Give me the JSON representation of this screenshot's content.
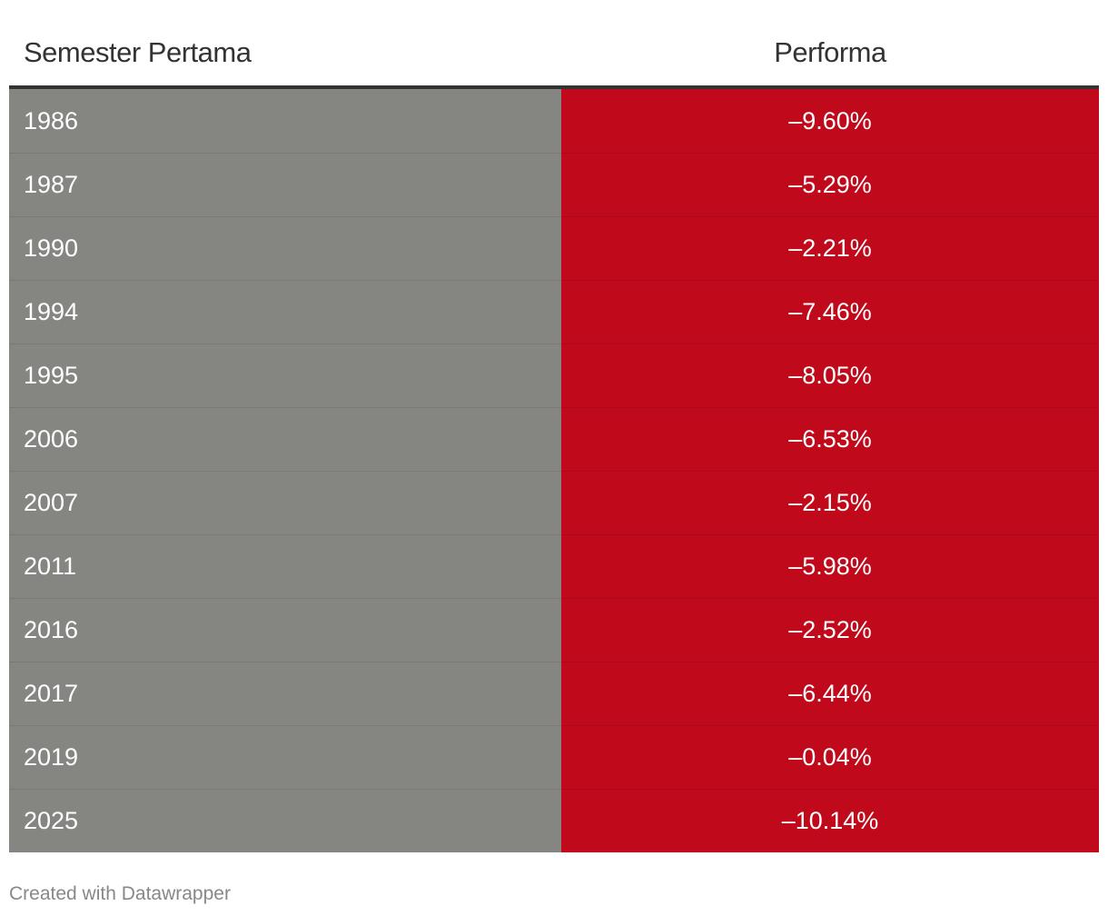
{
  "colors": {
    "year_column_bg": "#858681",
    "negative_bg": "#c00a1b",
    "header_text": "#333333",
    "cell_text": "#ffffff",
    "footer_text": "#888888"
  },
  "chart_data": {
    "type": "table",
    "columns": [
      "Semester Pertama",
      "Performa"
    ],
    "rows": [
      {
        "year": "1986",
        "performa": "–9.60%",
        "value": -9.6
      },
      {
        "year": "1987",
        "performa": "–5.29%",
        "value": -5.29
      },
      {
        "year": "1990",
        "performa": "–2.21%",
        "value": -2.21
      },
      {
        "year": "1994",
        "performa": "–7.46%",
        "value": -7.46
      },
      {
        "year": "1995",
        "performa": "–8.05%",
        "value": -8.05
      },
      {
        "year": "2006",
        "performa": "–6.53%",
        "value": -6.53
      },
      {
        "year": "2007",
        "performa": "–2.15%",
        "value": -2.15
      },
      {
        "year": "2011",
        "performa": "–5.98%",
        "value": -5.98
      },
      {
        "year": "2016",
        "performa": "–2.52%",
        "value": -2.52
      },
      {
        "year": "2017",
        "performa": "–6.44%",
        "value": -6.44
      },
      {
        "year": "2019",
        "performa": "–0.04%",
        "value": -0.04
      },
      {
        "year": "2025",
        "performa": "–10.14%",
        "value": -10.14
      }
    ]
  },
  "footer": {
    "credit": "Created with Datawrapper"
  }
}
